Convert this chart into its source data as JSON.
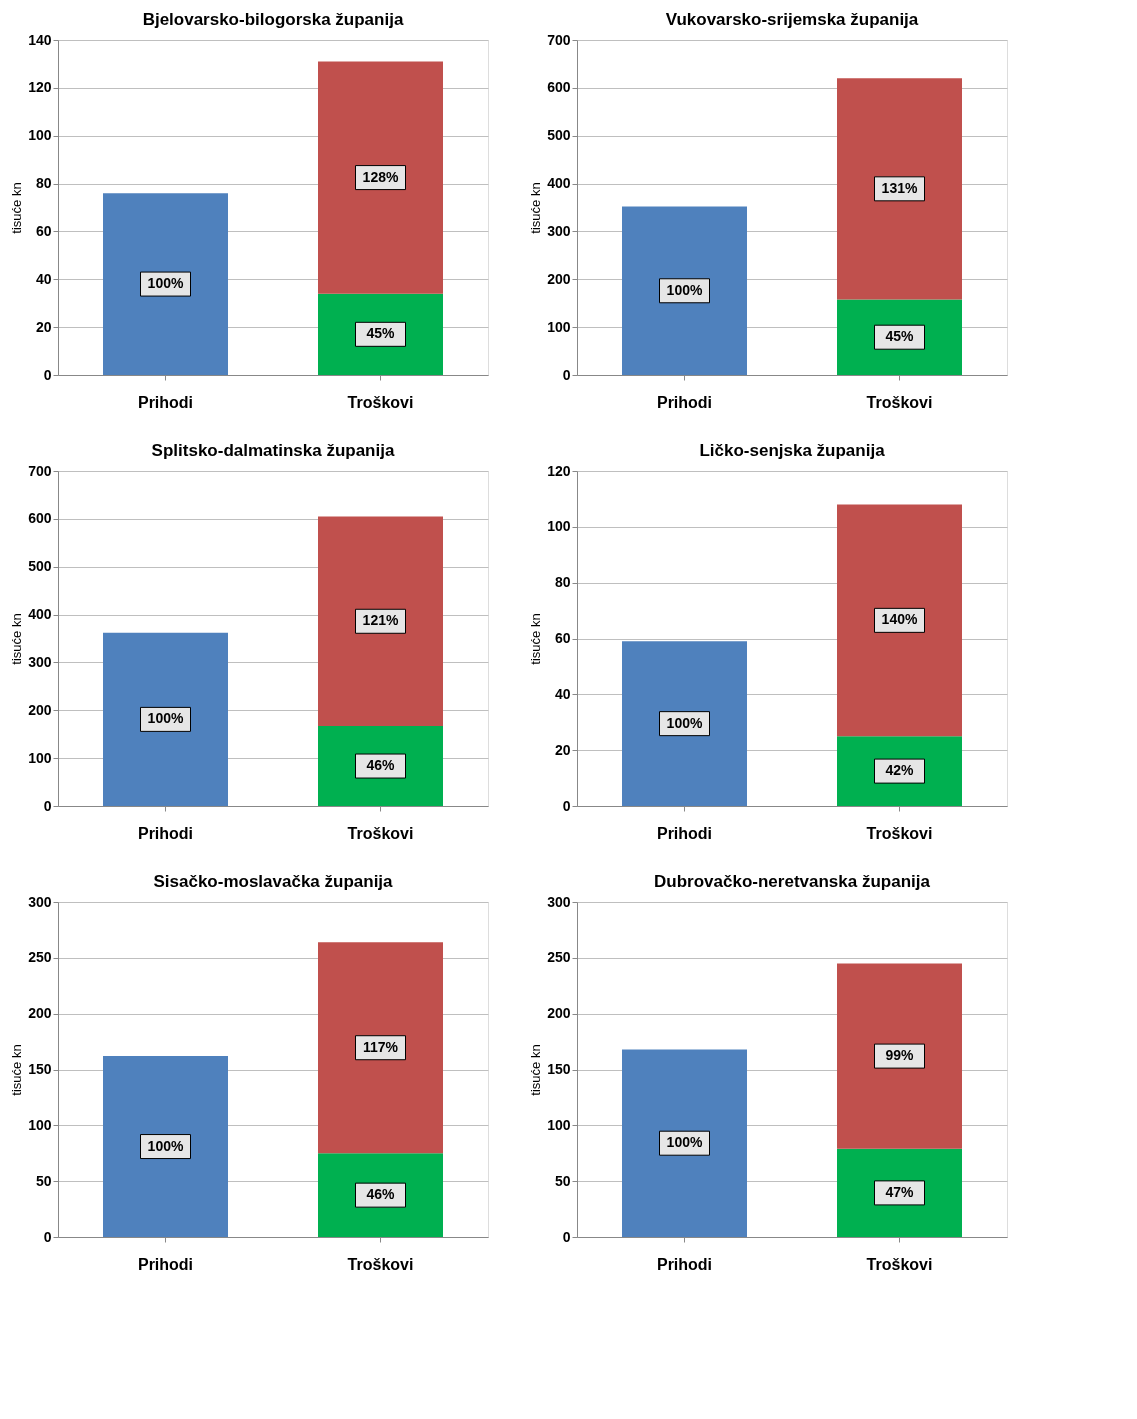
{
  "chart_data": [
    {
      "type": "bar",
      "title": "Bjelovarsko-bilogorska županija",
      "ylabel": "tisuće kn",
      "categories": [
        "Prihodi",
        "Troškovi"
      ],
      "stacked": true,
      "ylim": [
        0,
        140
      ],
      "yticks": [
        0,
        20,
        40,
        60,
        80,
        100,
        120,
        140
      ],
      "grid": "y",
      "series": [
        {
          "color": "#4f81bd",
          "values": [
            76,
            null
          ]
        },
        {
          "color": "#00b050",
          "values": [
            null,
            34
          ]
        },
        {
          "color": "#c0504d",
          "values": [
            null,
            97
          ]
        }
      ],
      "annotations": [
        "100%",
        "45%",
        "128%"
      ]
    },
    {
      "type": "bar",
      "title": "Vukovarsko-srijemska županija",
      "ylabel": "tisuće kn",
      "categories": [
        "Prihodi",
        "Troškovi"
      ],
      "stacked": true,
      "ylim": [
        0,
        700
      ],
      "yticks": [
        0,
        100,
        200,
        300,
        400,
        500,
        600,
        700
      ],
      "grid": "y",
      "series": [
        {
          "color": "#4f81bd",
          "values": [
            352,
            null
          ]
        },
        {
          "color": "#00b050",
          "values": [
            null,
            158
          ]
        },
        {
          "color": "#c0504d",
          "values": [
            null,
            462
          ]
        }
      ],
      "annotations": [
        "100%",
        "45%",
        "131%"
      ]
    },
    {
      "type": "bar",
      "title": "Splitsko-dalmatinska županija",
      "ylabel": "tisuće kn",
      "categories": [
        "Prihodi",
        "Troškovi"
      ],
      "stacked": true,
      "ylim": [
        0,
        700
      ],
      "yticks": [
        0,
        100,
        200,
        300,
        400,
        500,
        600,
        700
      ],
      "grid": "y",
      "series": [
        {
          "color": "#4f81bd",
          "values": [
            362,
            null
          ]
        },
        {
          "color": "#00b050",
          "values": [
            null,
            167
          ]
        },
        {
          "color": "#c0504d",
          "values": [
            null,
            438
          ]
        }
      ],
      "annotations": [
        "100%",
        "46%",
        "121%"
      ]
    },
    {
      "type": "bar",
      "title": "Ličko-senjska županija",
      "ylabel": "tisuće kn",
      "categories": [
        "Prihodi",
        "Troškovi"
      ],
      "stacked": true,
      "ylim": [
        0,
        120
      ],
      "yticks": [
        0,
        20,
        40,
        60,
        80,
        100,
        120
      ],
      "grid": "y",
      "series": [
        {
          "color": "#4f81bd",
          "values": [
            59,
            null
          ]
        },
        {
          "color": "#00b050",
          "values": [
            null,
            25
          ]
        },
        {
          "color": "#c0504d",
          "values": [
            null,
            83
          ]
        }
      ],
      "annotations": [
        "100%",
        "42%",
        "140%"
      ]
    },
    {
      "type": "bar",
      "title": "Sisačko-moslavačka županija",
      "ylabel": "tisuće kn",
      "categories": [
        "Prihodi",
        "Troškovi"
      ],
      "stacked": true,
      "ylim": [
        0,
        300
      ],
      "yticks": [
        0,
        50,
        100,
        150,
        200,
        250,
        300
      ],
      "grid": "y",
      "series": [
        {
          "color": "#4f81bd",
          "values": [
            162,
            null
          ]
        },
        {
          "color": "#00b050",
          "values": [
            null,
            75
          ]
        },
        {
          "color": "#c0504d",
          "values": [
            null,
            189
          ]
        }
      ],
      "annotations": [
        "100%",
        "46%",
        "117%"
      ]
    },
    {
      "type": "bar",
      "title": "Dubrovačko-neretvanska županija",
      "ylabel": "tisuće kn",
      "categories": [
        "Prihodi",
        "Troškovi"
      ],
      "stacked": true,
      "ylim": [
        0,
        300
      ],
      "yticks": [
        0,
        50,
        100,
        150,
        200,
        250,
        300
      ],
      "grid": "y",
      "series": [
        {
          "color": "#4f81bd",
          "values": [
            168,
            null
          ]
        },
        {
          "color": "#00b050",
          "values": [
            null,
            79
          ]
        },
        {
          "color": "#c0504d",
          "values": [
            null,
            166
          ]
        }
      ],
      "annotations": [
        "100%",
        "47%",
        "99%"
      ]
    }
  ]
}
